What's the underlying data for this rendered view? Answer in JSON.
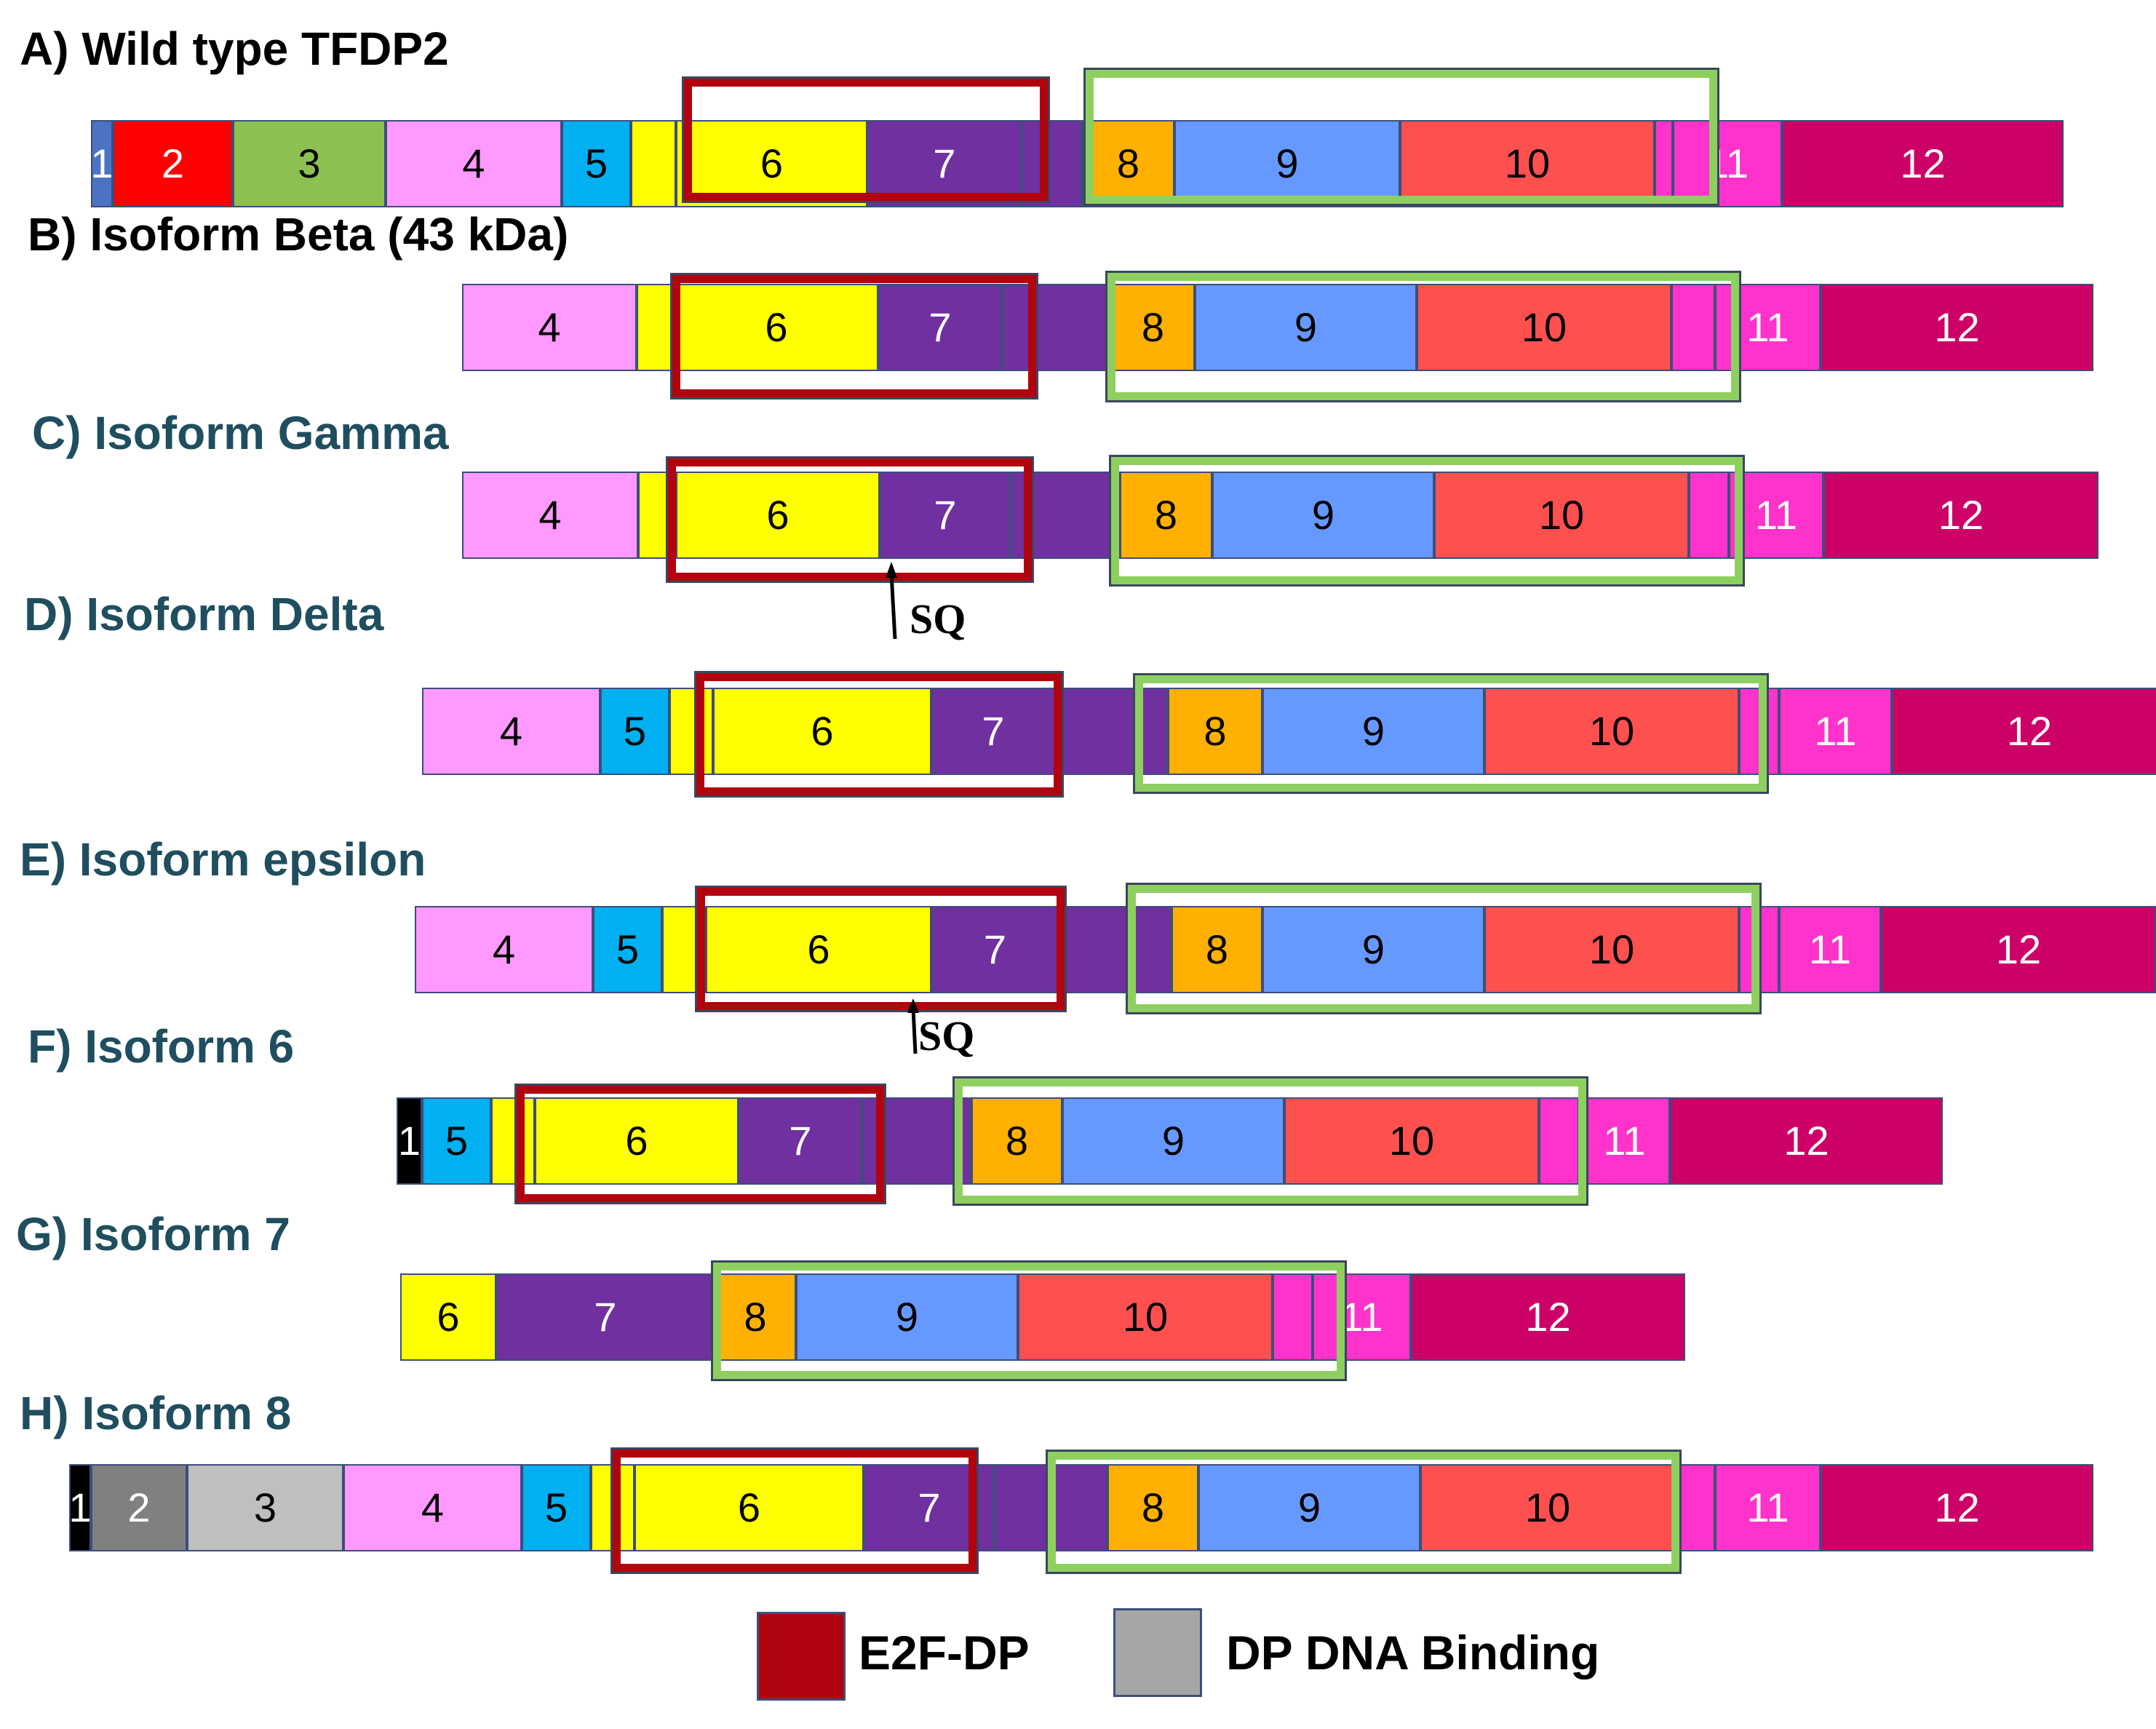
{
  "colors": {
    "exon_1": "#4a73c6",
    "exon_1_black": "#000000",
    "exon_2": "#ff0000",
    "exon_3": "#8cc152",
    "exon_2_grey": "#808080",
    "exon_3_grey": "#bfbfbf",
    "exon_4": "#ff99ff",
    "exon_5": "#00b0f0",
    "exon_6": "#ffff00",
    "exon_7": "#7030a0",
    "exon_8": "#ffb000",
    "exon_9": "#6699ff",
    "exon_10": "#ff5050",
    "exon_11": "#ff33cc",
    "exon_12": "#cc0066",
    "e2f_dp_box": "#b1040e",
    "dp_dna_box": "#8ed060",
    "title_dark": "#000000",
    "title_teal": "#1f4e5f"
  },
  "panels": [
    {
      "title": "A) Wild type TFDP2",
      "title_color": "#000000",
      "segments": [
        {
          "label": "1",
          "color": "#4a73c6",
          "text_color": "#ffffff"
        },
        {
          "label": "2",
          "color": "#ff0000",
          "text_color": "#ffffff"
        },
        {
          "label": "3",
          "color": "#8cc152",
          "text_color": "#000000"
        },
        {
          "label": "4",
          "color": "#ff99ff",
          "text_color": "#000000"
        },
        {
          "label": "5",
          "color": "#00b0f0",
          "text_color": "#000000"
        },
        {
          "label": "",
          "color": "#ffff00",
          "text_color": "#000000"
        },
        {
          "label": "6",
          "color": "#ffff00",
          "text_color": "#000000"
        },
        {
          "label": "7",
          "color": "#7030a0",
          "text_color": "#ffffff"
        },
        {
          "label": "",
          "color": "#7030a0",
          "text_color": "#ffffff"
        },
        {
          "label": "8",
          "color": "#ffb000",
          "text_color": "#000000"
        },
        {
          "label": "9",
          "color": "#6699ff",
          "text_color": "#000000"
        },
        {
          "label": "10",
          "color": "#ff5050",
          "text_color": "#000000"
        },
        {
          "label": "",
          "color": "#ff33cc",
          "text_color": "#000000"
        },
        {
          "label": "11",
          "color": "#ff33cc",
          "text_color": "#ffffff"
        },
        {
          "label": "12",
          "color": "#cc0066",
          "text_color": "#ffffff"
        }
      ]
    },
    {
      "title": "B) Isoform Beta (43 kDa)",
      "title_color": "#000000",
      "segments": [
        {
          "label": "4",
          "color": "#ff99ff",
          "text_color": "#000000"
        },
        {
          "label": "",
          "color": "#ffff00",
          "text_color": "#000000"
        },
        {
          "label": "6",
          "color": "#ffff00",
          "text_color": "#000000"
        },
        {
          "label": "7",
          "color": "#7030a0",
          "text_color": "#ffffff"
        },
        {
          "label": "",
          "color": "#7030a0",
          "text_color": "#ffffff"
        },
        {
          "label": "8",
          "color": "#ffb000",
          "text_color": "#000000"
        },
        {
          "label": "9",
          "color": "#6699ff",
          "text_color": "#000000"
        },
        {
          "label": "10",
          "color": "#ff5050",
          "text_color": "#000000"
        },
        {
          "label": "",
          "color": "#ff33cc",
          "text_color": "#000000"
        },
        {
          "label": "11",
          "color": "#ff33cc",
          "text_color": "#ffffff"
        },
        {
          "label": "12",
          "color": "#cc0066",
          "text_color": "#ffffff"
        }
      ]
    },
    {
      "title": "C) Isoform Gamma",
      "title_color": "#1f4e5f",
      "sq": "SQ",
      "segments": [
        {
          "label": "4",
          "color": "#ff99ff",
          "text_color": "#000000"
        },
        {
          "label": "",
          "color": "#ffff00",
          "text_color": "#000000"
        },
        {
          "label": "6",
          "color": "#ffff00",
          "text_color": "#000000"
        },
        {
          "label": "7",
          "color": "#7030a0",
          "text_color": "#ffffff"
        },
        {
          "label": "",
          "color": "#7030a0",
          "text_color": "#ffffff"
        },
        {
          "label": "8",
          "color": "#ffb000",
          "text_color": "#000000"
        },
        {
          "label": "9",
          "color": "#6699ff",
          "text_color": "#000000"
        },
        {
          "label": "10",
          "color": "#ff5050",
          "text_color": "#000000"
        },
        {
          "label": "",
          "color": "#ff33cc",
          "text_color": "#000000"
        },
        {
          "label": "11",
          "color": "#ff33cc",
          "text_color": "#ffffff"
        },
        {
          "label": "12",
          "color": "#cc0066",
          "text_color": "#ffffff"
        }
      ]
    },
    {
      "title": "D) Isoform Delta",
      "title_color": "#1f4e5f",
      "segments": [
        {
          "label": "4",
          "color": "#ff99ff",
          "text_color": "#000000"
        },
        {
          "label": "5",
          "color": "#00b0f0",
          "text_color": "#000000"
        },
        {
          "label": "",
          "color": "#ffff00",
          "text_color": "#000000"
        },
        {
          "label": "6",
          "color": "#ffff00",
          "text_color": "#000000"
        },
        {
          "label": "7",
          "color": "#7030a0",
          "text_color": "#ffffff"
        },
        {
          "label": "",
          "color": "#7030a0",
          "text_color": "#ffffff"
        },
        {
          "label": "8",
          "color": "#ffb000",
          "text_color": "#000000"
        },
        {
          "label": "9",
          "color": "#6699ff",
          "text_color": "#000000"
        },
        {
          "label": "10",
          "color": "#ff5050",
          "text_color": "#000000"
        },
        {
          "label": "",
          "color": "#ff33cc",
          "text_color": "#000000"
        },
        {
          "label": "11",
          "color": "#ff33cc",
          "text_color": "#ffffff"
        },
        {
          "label": "12",
          "color": "#cc0066",
          "text_color": "#ffffff"
        }
      ]
    },
    {
      "title": "E) Isoform epsilon",
      "title_color": "#1f4e5f",
      "sq": "SQ",
      "segments": [
        {
          "label": "4",
          "color": "#ff99ff",
          "text_color": "#000000"
        },
        {
          "label": "5",
          "color": "#00b0f0",
          "text_color": "#000000"
        },
        {
          "label": "",
          "color": "#ffff00",
          "text_color": "#000000"
        },
        {
          "label": "6",
          "color": "#ffff00",
          "text_color": "#000000"
        },
        {
          "label": "7",
          "color": "#7030a0",
          "text_color": "#ffffff"
        },
        {
          "label": "",
          "color": "#7030a0",
          "text_color": "#ffffff"
        },
        {
          "label": "8",
          "color": "#ffb000",
          "text_color": "#000000"
        },
        {
          "label": "9",
          "color": "#6699ff",
          "text_color": "#000000"
        },
        {
          "label": "10",
          "color": "#ff5050",
          "text_color": "#000000"
        },
        {
          "label": "",
          "color": "#ff33cc",
          "text_color": "#000000"
        },
        {
          "label": "11",
          "color": "#ff33cc",
          "text_color": "#ffffff"
        },
        {
          "label": "12",
          "color": "#cc0066",
          "text_color": "#ffffff"
        }
      ]
    },
    {
      "title": "F) Isoform 6",
      "title_color": "#1f4e5f",
      "segments": [
        {
          "label": "1",
          "color": "#000000",
          "text_color": "#ffffff"
        },
        {
          "label": "5",
          "color": "#00b0f0",
          "text_color": "#000000"
        },
        {
          "label": "",
          "color": "#ffff00",
          "text_color": "#000000"
        },
        {
          "label": "6",
          "color": "#ffff00",
          "text_color": "#000000"
        },
        {
          "label": "7",
          "color": "#7030a0",
          "text_color": "#ffffff"
        },
        {
          "label": "",
          "color": "#7030a0",
          "text_color": "#ffffff"
        },
        {
          "label": "8",
          "color": "#ffb000",
          "text_color": "#000000"
        },
        {
          "label": "9",
          "color": "#6699ff",
          "text_color": "#000000"
        },
        {
          "label": "10",
          "color": "#ff5050",
          "text_color": "#000000"
        },
        {
          "label": "",
          "color": "#ff33cc",
          "text_color": "#000000"
        },
        {
          "label": "11",
          "color": "#ff33cc",
          "text_color": "#ffffff"
        },
        {
          "label": "12",
          "color": "#cc0066",
          "text_color": "#ffffff"
        }
      ]
    },
    {
      "title": "G) Isoform 7",
      "title_color": "#1f4e5f",
      "segments": [
        {
          "label": "6",
          "color": "#ffff00",
          "text_color": "#000000"
        },
        {
          "label": "7",
          "color": "#7030a0",
          "text_color": "#ffffff"
        },
        {
          "label": "8",
          "color": "#ffb000",
          "text_color": "#000000"
        },
        {
          "label": "9",
          "color": "#6699ff",
          "text_color": "#000000"
        },
        {
          "label": "10",
          "color": "#ff5050",
          "text_color": "#000000"
        },
        {
          "label": "",
          "color": "#ff33cc",
          "text_color": "#000000"
        },
        {
          "label": "11",
          "color": "#ff33cc",
          "text_color": "#ffffff"
        },
        {
          "label": "12",
          "color": "#cc0066",
          "text_color": "#ffffff"
        }
      ]
    },
    {
      "title": "H) Isoform 8",
      "title_color": "#1f4e5f",
      "segments": [
        {
          "label": "1",
          "color": "#000000",
          "text_color": "#ffffff"
        },
        {
          "label": "2",
          "color": "#808080",
          "text_color": "#ffffff"
        },
        {
          "label": "3",
          "color": "#bfbfbf",
          "text_color": "#000000"
        },
        {
          "label": "4",
          "color": "#ff99ff",
          "text_color": "#000000"
        },
        {
          "label": "5",
          "color": "#00b0f0",
          "text_color": "#000000"
        },
        {
          "label": "",
          "color": "#ffff00",
          "text_color": "#000000"
        },
        {
          "label": "6",
          "color": "#ffff00",
          "text_color": "#000000"
        },
        {
          "label": "7",
          "color": "#7030a0",
          "text_color": "#ffffff"
        },
        {
          "label": "",
          "color": "#7030a0",
          "text_color": "#ffffff"
        },
        {
          "label": "8",
          "color": "#ffb000",
          "text_color": "#000000"
        },
        {
          "label": "9",
          "color": "#6699ff",
          "text_color": "#000000"
        },
        {
          "label": "10",
          "color": "#ff5050",
          "text_color": "#000000"
        },
        {
          "label": "",
          "color": "#ff33cc",
          "text_color": "#000000"
        },
        {
          "label": "11",
          "color": "#ff33cc",
          "text_color": "#ffffff"
        },
        {
          "label": "12",
          "color": "#cc0066",
          "text_color": "#ffffff"
        }
      ]
    }
  ],
  "legend": [
    {
      "label": "E2F-DP",
      "color": "#b1040e"
    },
    {
      "label": "DP DNA Binding",
      "color": "#a6a6a6"
    }
  ]
}
